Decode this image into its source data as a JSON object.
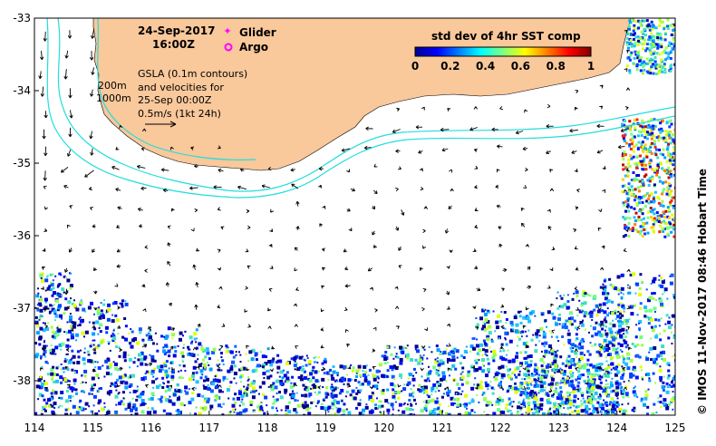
{
  "map": {
    "date_label": "24-Sep-2017",
    "time_label": "16:00Z",
    "legend_glider": "Glider",
    "legend_argo": "Argo",
    "depth_200": "200m",
    "depth_1000": "1000m",
    "gsla_note_1": "GSLA (0.1m contours)",
    "gsla_note_2": "and velocities for",
    "gsla_note_3": "25-Sep 00:00Z",
    "gsla_note_4": "0.5m/s (1kt 24h)",
    "credit": "©  IMOS 11-Nov-2017 08:46 Hobart Time",
    "colorbar_title": "std dev of 4hr SST comp",
    "colorbar_ticks": [
      "0",
      "0.2",
      "0.4",
      "0.6",
      "0.8",
      "1"
    ],
    "x_ticks": [
      "114",
      "115",
      "116",
      "117",
      "118",
      "119",
      "120",
      "121",
      "122",
      "123",
      "124",
      "125"
    ],
    "y_ticks": [
      "-33",
      "-34",
      "-35",
      "-36",
      "-37",
      "-38"
    ],
    "colors": {
      "land": "#f9c89b",
      "contour": "#22dddd",
      "glider": "#ff00ff",
      "argo": "#ff00ff",
      "arrow": "#000000"
    }
  }
}
